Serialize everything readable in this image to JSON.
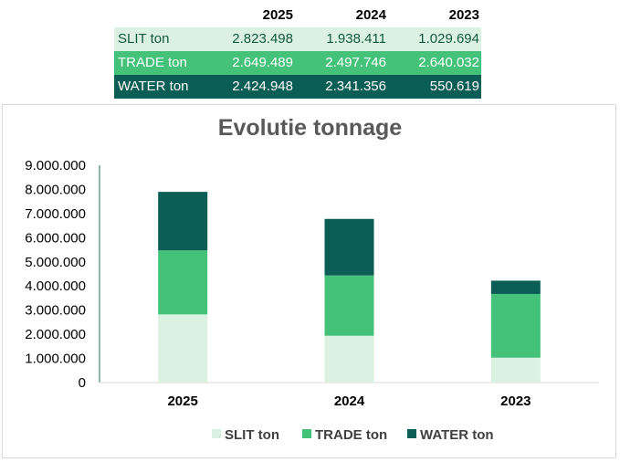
{
  "table": {
    "headers": [
      "2025",
      "2024",
      "2023"
    ],
    "rows": [
      {
        "label": "SLIT ton",
        "values": [
          "2.823.498",
          "1.938.411",
          "1.029.694"
        ]
      },
      {
        "label": "TRADE ton",
        "values": [
          "2.649.489",
          "2.497.746",
          "2.640.032"
        ]
      },
      {
        "label": "WATER ton",
        "values": [
          "2.424.948",
          "2.341.356",
          "550.619"
        ]
      }
    ]
  },
  "colors": {
    "slit": "#dbf2e3",
    "trade": "#45c27a",
    "water": "#0b5e55",
    "axis": "#1f6b5a"
  },
  "chart_data": {
    "type": "bar",
    "stacked": true,
    "title": "Evolutie tonnage",
    "categories": [
      "2025",
      "2024",
      "2023"
    ],
    "series": [
      {
        "name": "SLIT ton",
        "values": [
          2823498,
          1938411,
          1029694
        ]
      },
      {
        "name": "TRADE ton",
        "values": [
          2649489,
          2497746,
          2640032
        ]
      },
      {
        "name": "WATER ton",
        "values": [
          2424948,
          2341356,
          550619
        ]
      }
    ],
    "ylim": [
      0,
      9000000
    ],
    "yticks": [
      0,
      1000000,
      2000000,
      3000000,
      4000000,
      5000000,
      6000000,
      7000000,
      8000000,
      9000000
    ],
    "ytick_labels": [
      "0",
      "1.000.000",
      "2.000.000",
      "3.000.000",
      "4.000.000",
      "5.000.000",
      "6.000.000",
      "7.000.000",
      "8.000.000",
      "9.000.000"
    ],
    "xlabel": "",
    "ylabel": "",
    "legend_position": "bottom",
    "grid": false
  }
}
